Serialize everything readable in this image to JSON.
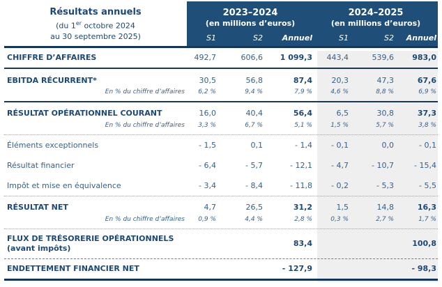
{
  "table": {
    "header": {
      "left_title": "Résultats annuels",
      "left_sub1_pre": "(du 1",
      "left_sub1_sup": "er",
      "left_sub1_post": " octobre 2024",
      "left_sub2": "au 30 septembre 2025)",
      "groups": [
        {
          "year": "2023–2024",
          "unit": "(en millions d’euros)",
          "s1": "S1",
          "s2": "S2",
          "annual": "Annuel"
        },
        {
          "year": "2024–2025",
          "unit": "(en millions d’euros)",
          "s1": "S1",
          "s2": "S2",
          "annual": "Annuel"
        }
      ]
    },
    "colors": {
      "header_bg": "#1F4E78",
      "dark_line": "#14365c",
      "bold_text": "#1c4878",
      "regular_text": "#35618e",
      "highlight_column_bg": "#efefef"
    },
    "rows": [
      {
        "label": "CHIFFRE D’AFFAIRES",
        "v": [
          "492,7",
          "606,6",
          "1 099,3",
          "443,4",
          "539,6",
          "983,0"
        ]
      },
      {
        "label": "EBITDA RÉCURRENT*",
        "v": [
          "30,5",
          "56,8",
          "87,4",
          "20,3",
          "47,3",
          "67,6"
        ]
      },
      {
        "label": "En % du chiffre d’affaires",
        "v": [
          "6,2 %",
          "9,4 %",
          "7,9 %",
          "4,6 %",
          "8,8 %",
          "6,9 %"
        ]
      },
      {
        "label": "RÉSULTAT OPÉRATIONNEL COURANT",
        "v": [
          "16,0",
          "40,4",
          "56,4",
          "6,5",
          "30,8",
          "37,3"
        ]
      },
      {
        "label": "En % du chiffre d’affaires",
        "v": [
          "3,3 %",
          "6,7 %",
          "5,1 %",
          "1,5 %",
          "5,7 %",
          "3,8 %"
        ]
      },
      {
        "label": "Éléments exceptionnels",
        "v": [
          "- 1,5",
          "0,1",
          "- 1,4",
          "- 0,1",
          "0,0",
          "- 0,1"
        ]
      },
      {
        "label": "Résultat financier",
        "v": [
          "- 6,4",
          "- 5,7",
          "- 12,1",
          "- 4,7",
          "- 10,7",
          "- 15,4"
        ]
      },
      {
        "label": "Impôt et mise en équivalence",
        "v": [
          "- 3,4",
          "- 8,4",
          "- 11,8",
          "- 0,2",
          "- 5,3",
          "- 5,5"
        ]
      },
      {
        "label": "RÉSULTAT NET",
        "v": [
          "4,7",
          "26,5",
          "31,2",
          "1,5",
          "14,8",
          "16,3"
        ]
      },
      {
        "label": "En % du chiffre d’affaires",
        "v": [
          "0,9 %",
          "4,4 %",
          "2,8 %",
          "0,3 %",
          "2,7 %",
          "1,7 %"
        ]
      },
      {
        "label": "FLUX DE TRÉSORERIE OPÉRATIONNELS",
        "label2": "(avant impôts)",
        "v": [
          "",
          "",
          "83,4",
          "",
          "",
          "100,8"
        ]
      },
      {
        "label": "ENDETTEMENT FINANCIER NET",
        "v": [
          "",
          "",
          "- 127,9",
          "",
          "",
          "- 98,3"
        ]
      }
    ]
  }
}
